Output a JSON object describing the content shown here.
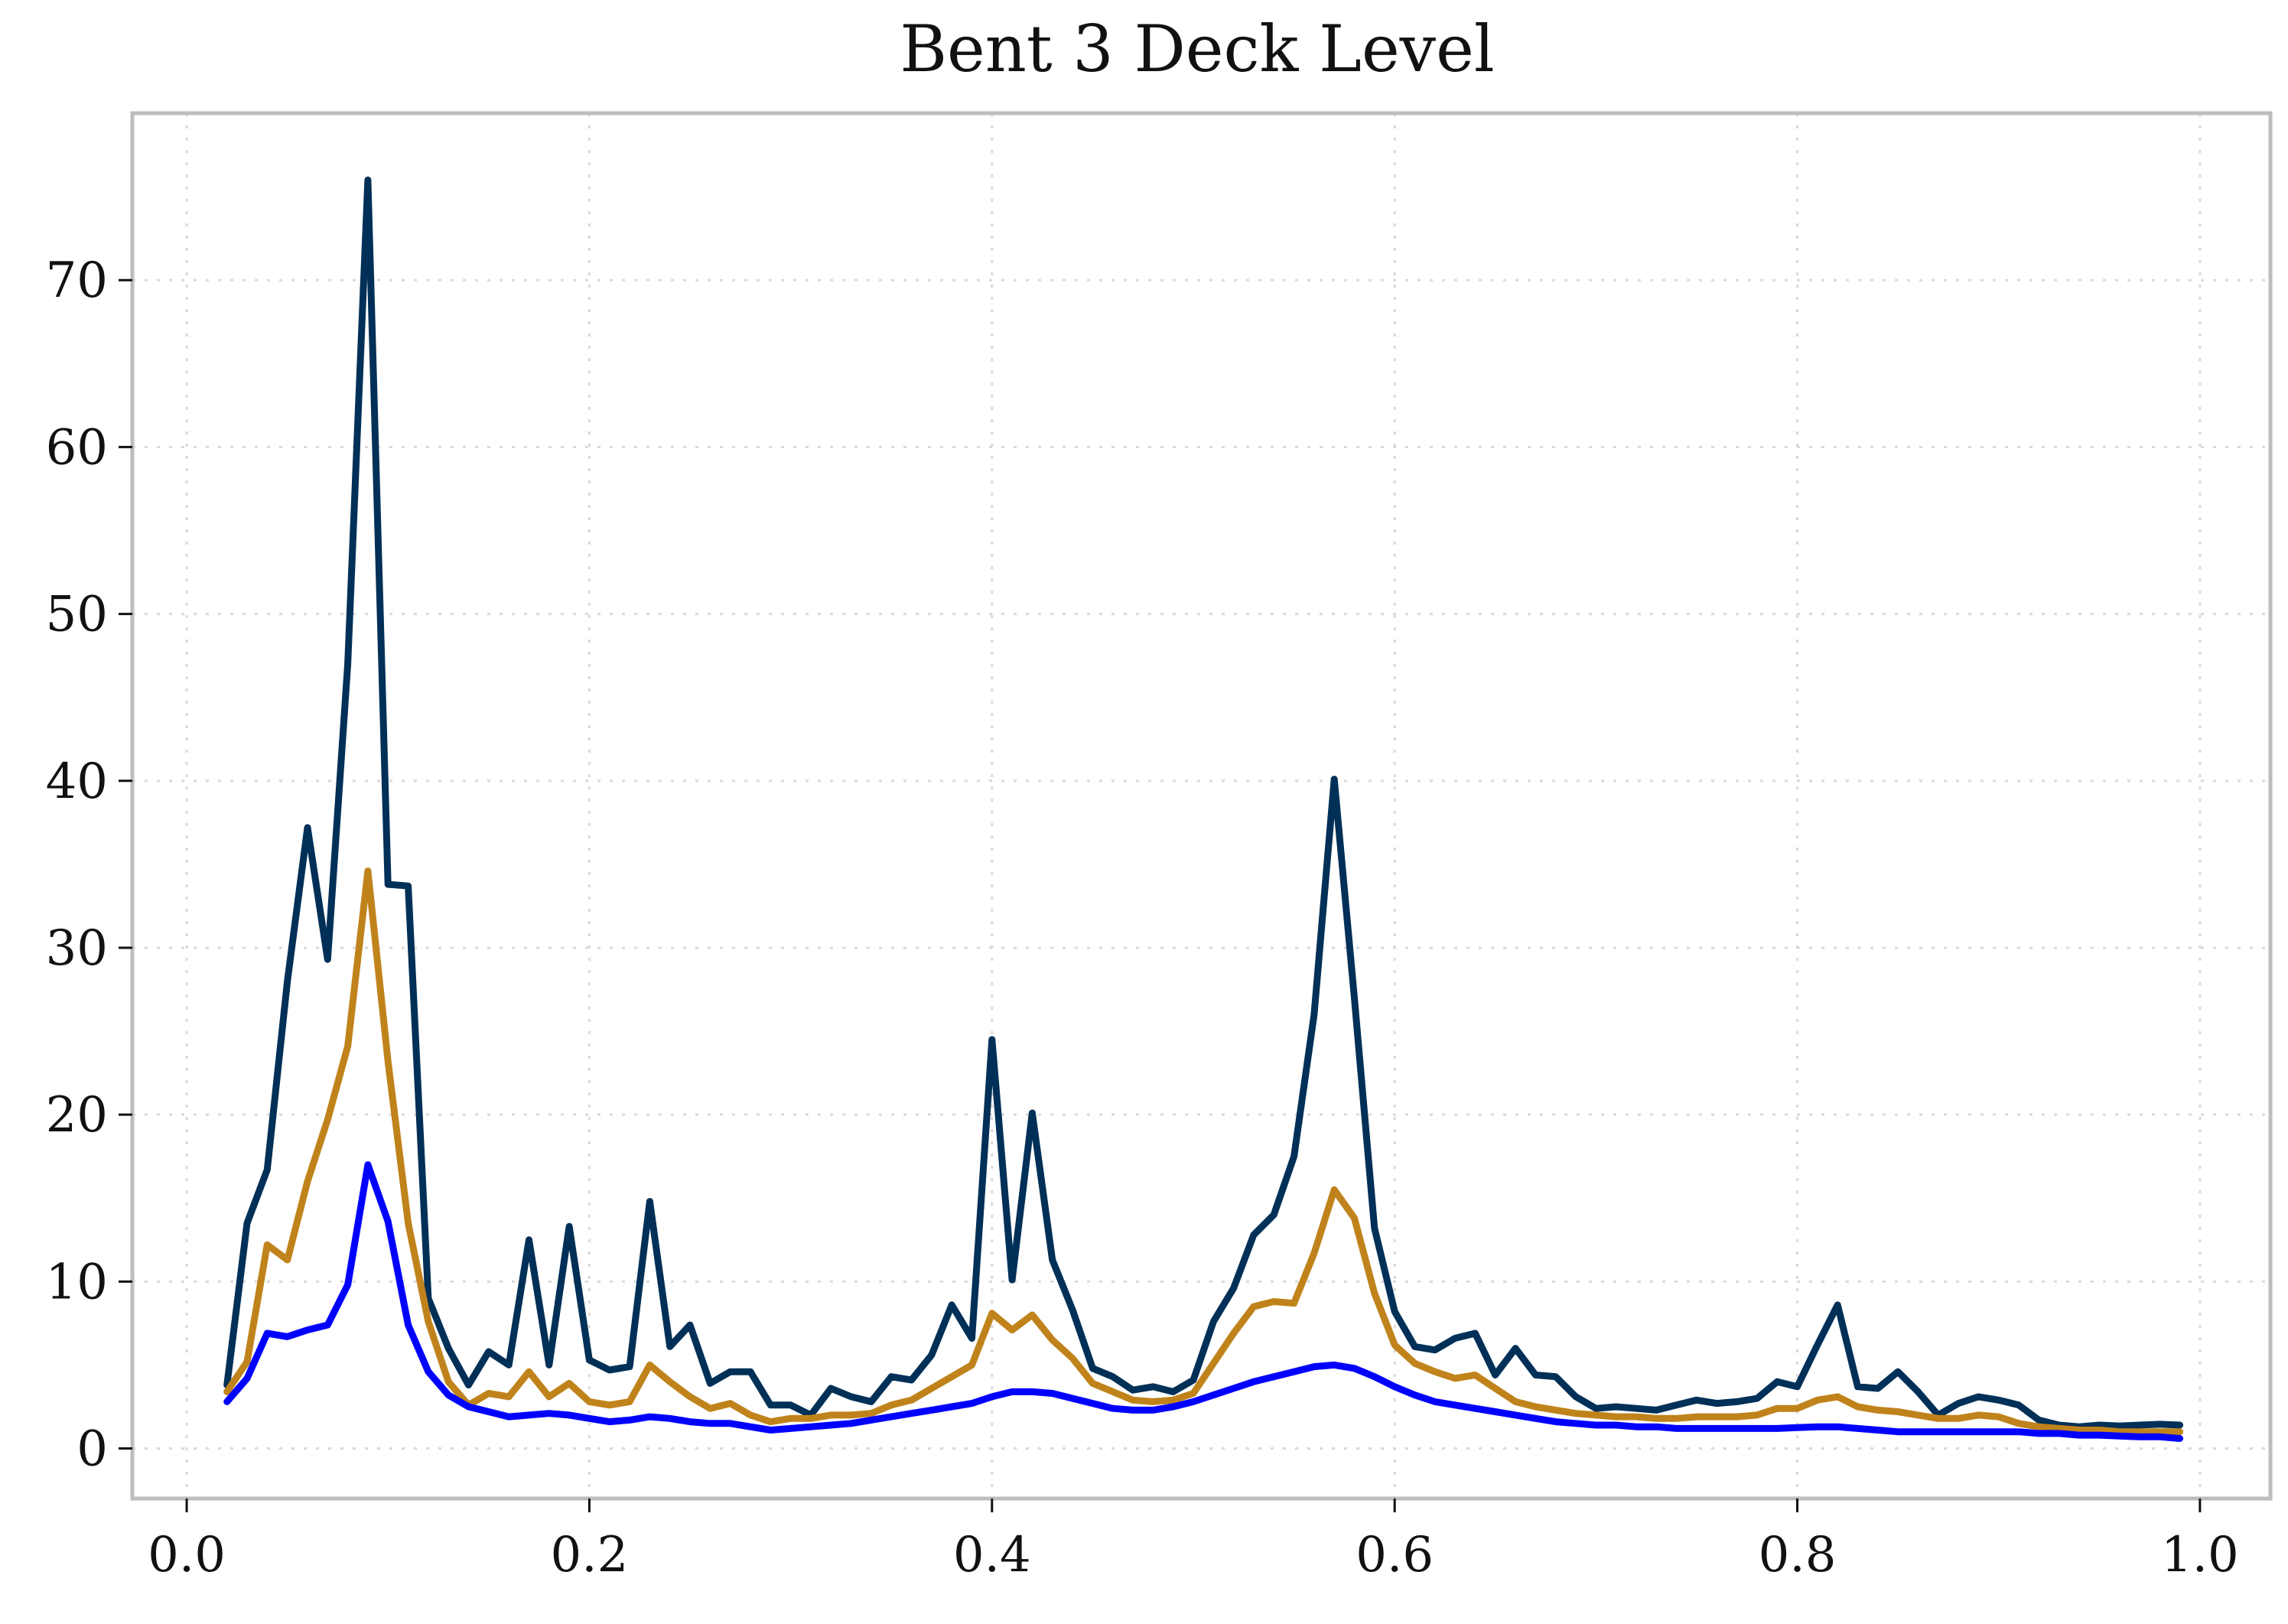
{
  "chart_data": {
    "type": "line",
    "title": "Bent 3 Deck Level",
    "xlabel": "",
    "ylabel": "",
    "xlim": [
      -0.027,
      1.035
    ],
    "ylim": [
      -3.0,
      80.0
    ],
    "xticks": [
      0.0,
      0.2,
      0.4,
      0.6,
      0.8,
      1.0
    ],
    "xtick_labels": [
      "0.0",
      "0.2",
      "0.4",
      "0.6",
      "0.8",
      "1.0"
    ],
    "yticks": [
      0,
      10,
      20,
      30,
      40,
      50,
      60,
      70
    ],
    "ytick_labels": [
      "0",
      "10",
      "20",
      "30",
      "40",
      "50",
      "60",
      "70"
    ],
    "grid": true,
    "legend": "none",
    "x": [
      0.02,
      0.03,
      0.04,
      0.05,
      0.06,
      0.07,
      0.08,
      0.09,
      0.1,
      0.11,
      0.12,
      0.13,
      0.14,
      0.15,
      0.16,
      0.17,
      0.18,
      0.19,
      0.2,
      0.21,
      0.22,
      0.23,
      0.24,
      0.25,
      0.26,
      0.27,
      0.28,
      0.29,
      0.3,
      0.31,
      0.32,
      0.33,
      0.34,
      0.35,
      0.36,
      0.37,
      0.38,
      0.39,
      0.4,
      0.41,
      0.42,
      0.43,
      0.44,
      0.45,
      0.46,
      0.47,
      0.48,
      0.49,
      0.5,
      0.51,
      0.52,
      0.53,
      0.54,
      0.55,
      0.56,
      0.57,
      0.58,
      0.59,
      0.6,
      0.61,
      0.62,
      0.63,
      0.64,
      0.65,
      0.66,
      0.67,
      0.68,
      0.69,
      0.7,
      0.71,
      0.72,
      0.73,
      0.74,
      0.75,
      0.76,
      0.77,
      0.78,
      0.79,
      0.8,
      0.81,
      0.82,
      0.83,
      0.84,
      0.85,
      0.86,
      0.87,
      0.88,
      0.89,
      0.9,
      0.91,
      0.92,
      0.93,
      0.94,
      0.95,
      0.96,
      0.97,
      0.98,
      0.99
    ],
    "series": [
      {
        "color": "#003057",
        "values": [
          3.8,
          13.5,
          16.7,
          28.0,
          37.2,
          29.3,
          47.0,
          76.0,
          33.8,
          33.7,
          9.0,
          6.0,
          3.8,
          5.8,
          5.0,
          12.5,
          5.0,
          13.3,
          5.3,
          4.7,
          4.9,
          14.8,
          6.1,
          7.4,
          3.9,
          4.6,
          4.6,
          2.6,
          2.6,
          2.0,
          3.6,
          3.1,
          2.8,
          4.3,
          4.1,
          5.6,
          8.6,
          6.6,
          24.5,
          10.1,
          20.1,
          11.3,
          8.3,
          4.8,
          4.3,
          3.5,
          3.7,
          3.4,
          4.1,
          7.6,
          9.6,
          12.8,
          14.0,
          17.5,
          26.0,
          40.1,
          27.0,
          13.2,
          8.2,
          6.1,
          5.9,
          6.6,
          6.9,
          4.4,
          6.0,
          4.4,
          4.3,
          3.1,
          2.4,
          2.5,
          2.4,
          2.3,
          2.6,
          2.9,
          2.7,
          2.8,
          3.0,
          4.0,
          3.7,
          6.2,
          8.6,
          3.7,
          3.6,
          4.6,
          3.4,
          2.0,
          2.7,
          3.1,
          2.9,
          2.6,
          1.7,
          1.4,
          1.3,
          1.4,
          1.35,
          1.4,
          1.45,
          1.4
        ]
      },
      {
        "color": "#C0831B",
        "values": [
          3.4,
          5.2,
          12.2,
          11.3,
          16.0,
          19.7,
          24.1,
          34.6,
          23.2,
          13.5,
          7.6,
          4.0,
          2.6,
          3.3,
          3.1,
          4.6,
          3.1,
          3.9,
          2.8,
          2.6,
          2.8,
          5.0,
          4.0,
          3.1,
          2.4,
          2.7,
          2.0,
          1.6,
          1.8,
          1.8,
          2.0,
          2.0,
          2.1,
          2.6,
          2.9,
          3.6,
          4.3,
          5.0,
          8.1,
          7.1,
          8.0,
          6.5,
          5.4,
          3.9,
          3.4,
          2.9,
          2.8,
          2.9,
          3.3,
          5.1,
          6.9,
          8.5,
          8.8,
          8.7,
          11.7,
          15.5,
          13.8,
          9.3,
          6.2,
          5.1,
          4.6,
          4.2,
          4.4,
          3.6,
          2.8,
          2.5,
          2.3,
          2.1,
          2.0,
          1.9,
          1.9,
          1.8,
          1.8,
          1.9,
          1.9,
          1.9,
          2.0,
          2.4,
          2.4,
          2.9,
          3.1,
          2.5,
          2.3,
          2.2,
          2.0,
          1.8,
          1.8,
          2.0,
          1.9,
          1.5,
          1.3,
          1.2,
          1.1,
          1.1,
          1.0,
          1.0,
          1.0,
          1.0
        ]
      },
      {
        "color": "#0000FF",
        "values": [
          2.8,
          4.2,
          6.9,
          6.7,
          7.1,
          7.4,
          9.8,
          17.0,
          13.6,
          7.4,
          4.6,
          3.2,
          2.5,
          2.2,
          1.9,
          2.0,
          2.1,
          2.0,
          1.8,
          1.6,
          1.7,
          1.9,
          1.8,
          1.6,
          1.5,
          1.5,
          1.3,
          1.1,
          1.2,
          1.3,
          1.4,
          1.5,
          1.7,
          1.9,
          2.1,
          2.3,
          2.5,
          2.7,
          3.1,
          3.4,
          3.4,
          3.3,
          3.0,
          2.7,
          2.4,
          2.3,
          2.3,
          2.5,
          2.8,
          3.2,
          3.6,
          4.0,
          4.3,
          4.6,
          4.9,
          5.0,
          4.8,
          4.3,
          3.7,
          3.2,
          2.8,
          2.6,
          2.4,
          2.2,
          2.0,
          1.8,
          1.6,
          1.5,
          1.4,
          1.4,
          1.3,
          1.3,
          1.2,
          1.2,
          1.2,
          1.2,
          1.2,
          1.2,
          1.25,
          1.3,
          1.3,
          1.2,
          1.1,
          1.0,
          1.0,
          1.0,
          1.0,
          1.0,
          1.0,
          1.0,
          0.9,
          0.9,
          0.8,
          0.8,
          0.75,
          0.7,
          0.7,
          0.6
        ]
      }
    ]
  }
}
